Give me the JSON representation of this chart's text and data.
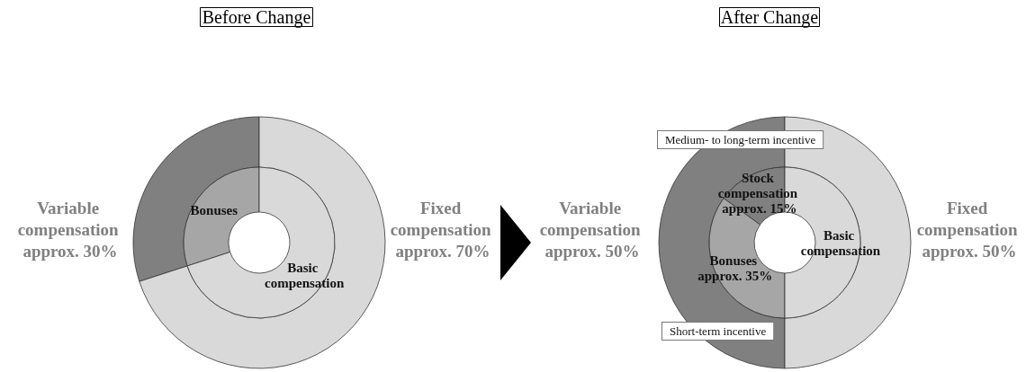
{
  "chart_data": [
    {
      "type": "donut",
      "title": "Before Change",
      "categories": [
        "Variable compensation approx. 30%",
        "Fixed compensation approx. 70%"
      ],
      "values": [
        30,
        70
      ],
      "colors": [
        "#808080",
        "#d9d9d9"
      ]
    },
    {
      "type": "donut",
      "categories": [
        "Bonuses",
        "Basic compensation"
      ],
      "values": [
        30,
        70
      ],
      "colors": [
        "#a6a6a6",
        "#d9d9d9"
      ]
    },
    {
      "type": "donut",
      "title": "After Change",
      "categories": [
        "Variable compensation approx. 50%",
        "Fixed compensation approx. 50%"
      ],
      "values": [
        50,
        50
      ],
      "colors": [
        "#808080",
        "#d9d9d9"
      ]
    },
    {
      "type": "donut",
      "categories": [
        "Stock compensation approx. 15%",
        "Bonuses approx. 35%",
        "Basic compensation"
      ],
      "values": [
        15,
        35,
        50
      ],
      "colors": [
        "#808080",
        "#a6a6a6",
        "#d9d9d9"
      ],
      "annotations": [
        "Medium- to long-term incentive",
        "Short-term incentive"
      ]
    }
  ]
}
